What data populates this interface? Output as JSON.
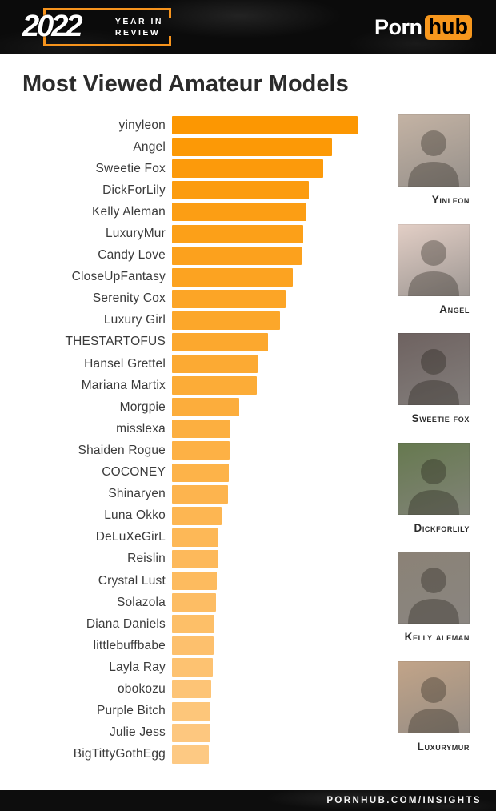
{
  "header": {
    "year": "2022",
    "tagline_line1": "YEAR IN",
    "tagline_line2": "REVIEW",
    "brand_part1": "Porn",
    "brand_part2": "hub",
    "accent_color": "#f7941d"
  },
  "chart_data": {
    "type": "bar",
    "orientation": "horizontal",
    "title": "Most Viewed Amateur Models",
    "xlabel": "",
    "ylabel": "",
    "unit": "relative bar length, % of top model (no numeric axis shown)",
    "grid": false,
    "legend": false,
    "value_labels": false,
    "bar_color_start": "#fc9702",
    "bar_color_end": "#fdc983",
    "categories": [
      "yinyleon",
      "Angel",
      "Sweetie Fox",
      "DickForLily",
      "Kelly Aleman",
      "LuxuryMur",
      "Candy Love",
      "CloseUpFantasy",
      "Serenity Cox",
      "Luxury Girl",
      "THESTARTOFUS",
      "Hansel Grettel",
      "Mariana Martix",
      "Morgpie",
      "misslexa",
      "Shaiden Rogue",
      "COCONEY",
      "Shinaryen",
      "Luna Okko",
      "DeLuXeGirL",
      "Reislin",
      "Crystal Lust",
      "Solazola",
      "Diana Daniels",
      "littlebuffbabe",
      "Layla Ray",
      "obokozu",
      "Purple Bitch",
      "Julie Jess",
      "BigTittyGothEgg"
    ],
    "values": [
      100,
      86,
      81.5,
      73.5,
      72.5,
      70.5,
      70,
      65,
      61,
      58,
      51.5,
      46,
      45.5,
      36,
      31.5,
      31,
      30.5,
      30,
      26.5,
      25,
      25,
      24,
      23.5,
      23,
      22.5,
      22,
      21,
      20.5,
      20.5,
      20
    ]
  },
  "photos": {
    "items": [
      {
        "caption": "Yinleon",
        "placeholder_color": "#c4b3a4"
      },
      {
        "caption": "Angel",
        "placeholder_color": "#e3cfc6"
      },
      {
        "caption": "Sweetie Fox",
        "placeholder_color": "#6e6260"
      },
      {
        "caption": "DickForLily",
        "placeholder_color": "#66794f"
      },
      {
        "caption": "Kelly Aleman",
        "placeholder_color": "#8b8276"
      },
      {
        "caption": "LuxuryMur",
        "placeholder_color": "#c2a488"
      }
    ]
  },
  "footer": {
    "text": "PORNHUB.COM/INSIGHTS"
  }
}
